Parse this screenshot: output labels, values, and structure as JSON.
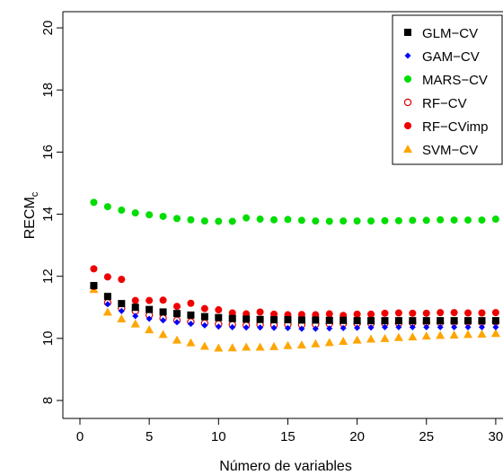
{
  "chart_data": {
    "type": "scatter",
    "xlabel": "Número de variables",
    "ylabel_main": "RECM",
    "ylabel_sub": "c",
    "xlim": [
      1,
      30
    ],
    "ylim": [
      8,
      20
    ],
    "xticks": [
      "0",
      "5",
      "10",
      "15",
      "20",
      "25",
      "30"
    ],
    "xtick_values": [
      0,
      5,
      10,
      15,
      20,
      25,
      30
    ],
    "yticks": [
      "8",
      "10",
      "12",
      "14",
      "16",
      "18",
      "20"
    ],
    "ytick_values": [
      8,
      10,
      12,
      14,
      16,
      18,
      20
    ],
    "legend_position": "top-right",
    "grid": false,
    "x": [
      1,
      2,
      3,
      4,
      5,
      6,
      7,
      8,
      9,
      10,
      11,
      12,
      13,
      14,
      15,
      16,
      17,
      18,
      19,
      20,
      21,
      22,
      23,
      24,
      25,
      26,
      27,
      28,
      29,
      30
    ],
    "series": [
      {
        "name": "GLM−CV",
        "marker": "square",
        "color": "#000000",
        "values": [
          11.7,
          11.35,
          11.12,
          11.0,
          10.93,
          10.85,
          10.8,
          10.75,
          10.7,
          10.67,
          10.64,
          10.62,
          10.61,
          10.6,
          10.6,
          10.59,
          10.59,
          10.58,
          10.58,
          10.57,
          10.57,
          10.57,
          10.57,
          10.57,
          10.57,
          10.57,
          10.57,
          10.57,
          10.57,
          10.57
        ]
      },
      {
        "name": "GAM−CV",
        "marker": "diamond",
        "color": "#0000ff",
        "values": [
          11.7,
          11.1,
          10.88,
          10.72,
          10.63,
          10.58,
          10.52,
          10.47,
          10.42,
          10.38,
          10.36,
          10.35,
          10.35,
          10.34,
          10.33,
          10.31,
          10.31,
          10.32,
          10.33,
          10.34,
          10.35,
          10.36,
          10.36,
          10.36,
          10.36,
          10.36,
          10.36,
          10.36,
          10.36,
          10.36
        ]
      },
      {
        "name": "MARS−CV",
        "marker": "filled-circle",
        "color": "#00dd00",
        "values": [
          14.38,
          14.24,
          14.13,
          14.04,
          13.98,
          13.93,
          13.86,
          13.82,
          13.78,
          13.77,
          13.77,
          13.88,
          13.84,
          13.82,
          13.83,
          13.8,
          13.78,
          13.77,
          13.78,
          13.78,
          13.78,
          13.79,
          13.79,
          13.8,
          13.8,
          13.82,
          13.81,
          13.81,
          13.81,
          13.84
        ]
      },
      {
        "name": "RF−CV",
        "marker": "open-circle",
        "color": "#dd0000",
        "values": [
          11.68,
          11.15,
          10.97,
          10.88,
          10.75,
          10.65,
          10.58,
          10.53,
          10.49,
          10.46,
          10.44,
          10.42,
          10.44,
          10.43,
          10.45,
          10.44,
          10.45,
          10.47,
          10.48,
          10.48,
          10.48,
          10.49,
          10.49,
          10.5,
          10.51,
          10.51,
          10.52,
          10.52,
          10.52,
          10.53
        ]
      },
      {
        "name": "RF−CVimp",
        "marker": "filled-circle",
        "color": "#ee0000",
        "values": [
          12.24,
          11.98,
          11.9,
          11.22,
          11.22,
          11.23,
          11.03,
          11.13,
          10.96,
          10.92,
          10.82,
          10.79,
          10.85,
          10.78,
          10.76,
          10.77,
          10.76,
          10.79,
          10.74,
          10.78,
          10.78,
          10.81,
          10.82,
          10.81,
          10.81,
          10.83,
          10.83,
          10.82,
          10.82,
          10.83
        ]
      },
      {
        "name": "SVM−CV",
        "marker": "triangle",
        "color": "#ffa500",
        "values": [
          11.58,
          10.85,
          10.63,
          10.47,
          10.28,
          10.13,
          9.95,
          9.86,
          9.75,
          9.69,
          9.7,
          9.72,
          9.72,
          9.74,
          9.77,
          9.79,
          9.83,
          9.87,
          9.91,
          9.95,
          9.98,
          10.0,
          10.03,
          10.05,
          10.08,
          10.1,
          10.11,
          10.13,
          10.14,
          10.16
        ]
      }
    ]
  }
}
